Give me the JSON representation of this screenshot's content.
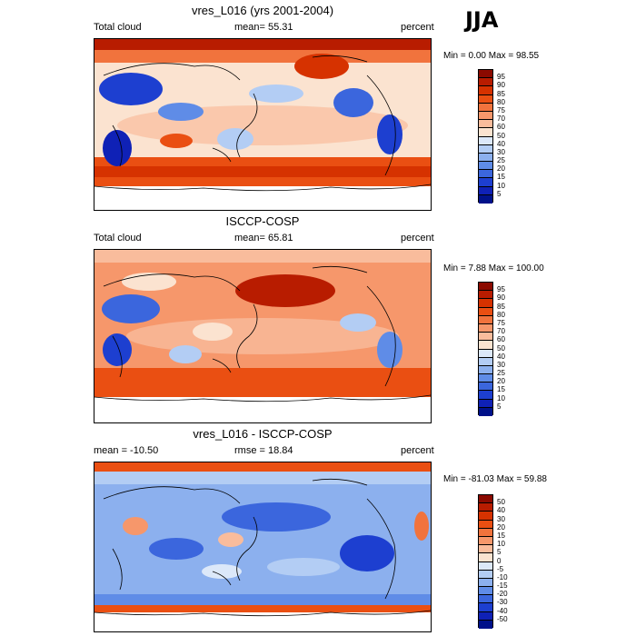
{
  "season": "JJA",
  "panels": [
    {
      "title": "vres_L016 (yrs 2001-2004)",
      "left_label": "Total cloud",
      "center_label": "mean=  55.31",
      "right_label": "percent",
      "minmax": "Min =   0.00 Max =  98.55",
      "ticks": [
        "95",
        "90",
        "85",
        "80",
        "75",
        "70",
        "60",
        "50",
        "40",
        "30",
        "25",
        "20",
        "15",
        "10",
        "5"
      ],
      "colors": [
        "#8b0a00",
        "#b81c00",
        "#d63200",
        "#ea4f12",
        "#f1733d",
        "#f6976b",
        "#f9bc9c",
        "#fbe3d0",
        "#dce8f9",
        "#b3cdf4",
        "#8cb0ee",
        "#5f8ce7",
        "#3b66dd",
        "#1d3fd0",
        "#0f21b6",
        "#00118a"
      ]
    },
    {
      "title": "ISCCP-COSP",
      "left_label": "Total cloud",
      "center_label": "mean=  65.81",
      "right_label": "percent",
      "minmax": "Min =   7.88 Max = 100.00",
      "ticks": [
        "95",
        "90",
        "85",
        "80",
        "75",
        "70",
        "60",
        "50",
        "40",
        "30",
        "25",
        "20",
        "15",
        "10",
        "5"
      ],
      "colors": [
        "#8b0a00",
        "#b81c00",
        "#d63200",
        "#ea4f12",
        "#f1733d",
        "#f6976b",
        "#f9bc9c",
        "#fbe3d0",
        "#dce8f9",
        "#b3cdf4",
        "#8cb0ee",
        "#5f8ce7",
        "#3b66dd",
        "#1d3fd0",
        "#0f21b6",
        "#00118a"
      ]
    },
    {
      "title": "vres_L016 - ISCCP-COSP",
      "left_label": "mean = -10.50",
      "center_label": "rmse =  18.84",
      "right_label": "percent",
      "minmax": "Min = -81.03 Max =  59.88",
      "ticks": [
        "50",
        "40",
        "30",
        "20",
        "15",
        "10",
        "5",
        "0",
        "-5",
        "-10",
        "-15",
        "-20",
        "-30",
        "-40",
        "-50"
      ],
      "colors": [
        "#8b0a00",
        "#b81c00",
        "#d63200",
        "#ea4f12",
        "#f1733d",
        "#f6976b",
        "#f9bc9c",
        "#fbe3d0",
        "#dce8f9",
        "#b3cdf4",
        "#8cb0ee",
        "#5f8ce7",
        "#3b66dd",
        "#1d3fd0",
        "#0f21b6",
        "#00118a"
      ]
    }
  ]
}
